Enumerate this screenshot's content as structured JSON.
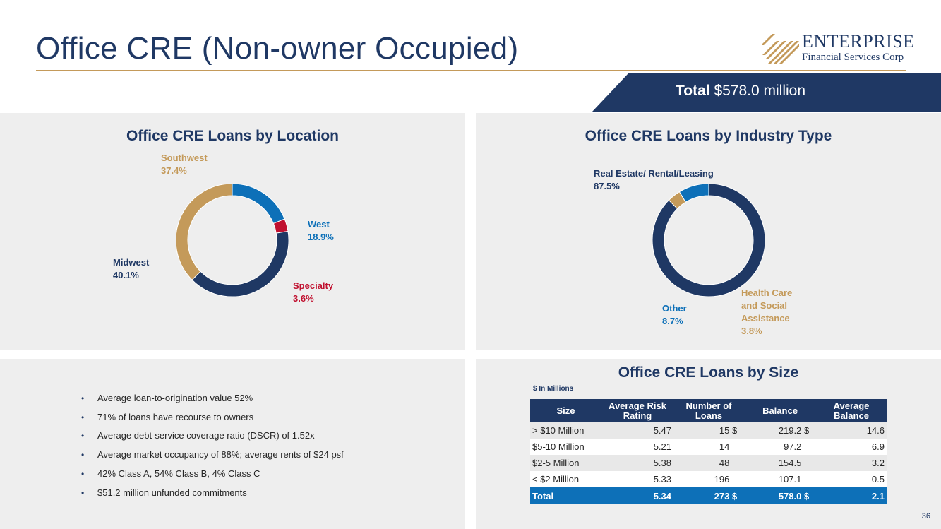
{
  "header": {
    "title": "Office CRE (Non-owner Occupied)",
    "logo_name": "ENTERPRISE",
    "logo_sub": "Financial Services Corp",
    "total_label": "Total",
    "total_value": "$578.0 million"
  },
  "colors": {
    "navy": "#1f3864",
    "gold": "#c49a5a",
    "blue": "#0d70b8",
    "red": "#c0102f"
  },
  "location_panel": {
    "title": "Office CRE Loans by Location",
    "labels": [
      {
        "name": "Southwest",
        "pct": "37.4%"
      },
      {
        "name": "West",
        "pct": "18.9%"
      },
      {
        "name": "Specialty",
        "pct": "3.6%"
      },
      {
        "name": "Midwest",
        "pct": "40.1%"
      }
    ]
  },
  "industry_panel": {
    "title": "Office CRE Loans by Industry Type",
    "labels": [
      {
        "name": "Real Estate/ Rental/Leasing",
        "pct": "87.5%"
      },
      {
        "name": "Other",
        "pct": "8.7%"
      },
      {
        "name_lines": [
          "Health Care",
          "and Social",
          "Assistance"
        ],
        "pct": "3.8%"
      }
    ]
  },
  "bullets": [
    "Average loan-to-origination value 52%",
    "71% of loans have recourse to owners",
    "Average debt-service coverage ratio (DSCR) of 1.52x",
    "Average market occupancy of 88%; average rents of $24 psf",
    "42% Class A, 54% Class B, 4% Class C",
    "$51.2 million unfunded commitments"
  ],
  "size_panel": {
    "title": "Office CRE Loans by Size",
    "units": "$ In Millions",
    "columns": [
      "Size",
      "Average Risk Rating",
      "Number of Loans",
      "Balance",
      "Average Balance"
    ],
    "rows": [
      {
        "size": "> $10 Million",
        "risk": "5.47",
        "count": "15",
        "bal_cur": "$",
        "balance": "219.2",
        "avg_cur": "$",
        "avg": "14.6"
      },
      {
        "size": "$5-10 Million",
        "risk": "5.21",
        "count": "14",
        "bal_cur": "",
        "balance": "97.2",
        "avg_cur": "",
        "avg": "6.9"
      },
      {
        "size": "$2-5 Million",
        "risk": "5.38",
        "count": "48",
        "bal_cur": "",
        "balance": "154.5",
        "avg_cur": "",
        "avg": "3.2"
      },
      {
        "size": "< $2 Million",
        "risk": "5.33",
        "count": "196",
        "bal_cur": "",
        "balance": "107.1",
        "avg_cur": "",
        "avg": "0.5"
      }
    ],
    "total": {
      "size": "Total",
      "risk": "5.34",
      "count": "273",
      "bal_cur": "$",
      "balance": "578.0",
      "avg_cur": "$",
      "avg": "2.1"
    }
  },
  "page_number": "36",
  "chart_data": [
    {
      "type": "pie",
      "title": "Office CRE Loans by Location",
      "categories": [
        "West",
        "Specialty",
        "Midwest",
        "Southwest"
      ],
      "values": [
        18.9,
        3.6,
        40.1,
        37.4
      ],
      "colors": [
        "#0d70b8",
        "#c0102f",
        "#1f3864",
        "#c49a5a"
      ],
      "donut": true,
      "legend": "none"
    },
    {
      "type": "pie",
      "title": "Office CRE Loans by Industry Type",
      "categories": [
        "Real Estate/ Rental/Leasing",
        "Health Care and Social Assistance",
        "Other"
      ],
      "values": [
        87.5,
        3.8,
        8.7
      ],
      "colors": [
        "#1f3864",
        "#c49a5a",
        "#0d70b8"
      ],
      "donut": true,
      "legend": "none"
    }
  ]
}
